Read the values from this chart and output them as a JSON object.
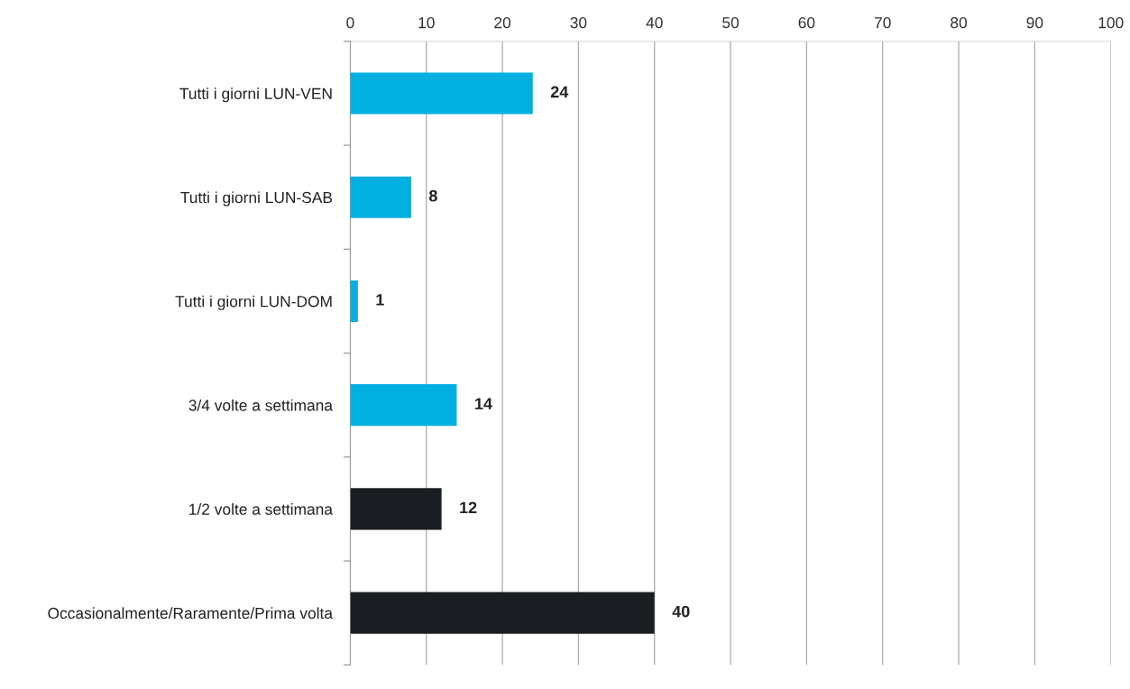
{
  "chart_data": {
    "type": "bar",
    "orientation": "horizontal",
    "categories": [
      "Tutti i giorni LUN-VEN",
      "Tutti i giorni LUN-SAB",
      "Tutti i giorni LUN-DOM",
      "3/4 volte a settimana",
      "1/2 volte a settimana",
      "Occasionalmente/Raramente/Prima volta"
    ],
    "values": [
      24,
      8,
      1,
      14,
      12,
      40
    ],
    "colors": [
      "#00b0e0",
      "#00b0e0",
      "#00b0e0",
      "#00b0e0",
      "#1a1d21",
      "#1a1d21"
    ],
    "xlim": [
      0,
      100
    ],
    "xticks": [
      0,
      10,
      20,
      30,
      40,
      50,
      60,
      70,
      80,
      90,
      100
    ],
    "grid": "x",
    "data_labels": true,
    "legend": false
  }
}
